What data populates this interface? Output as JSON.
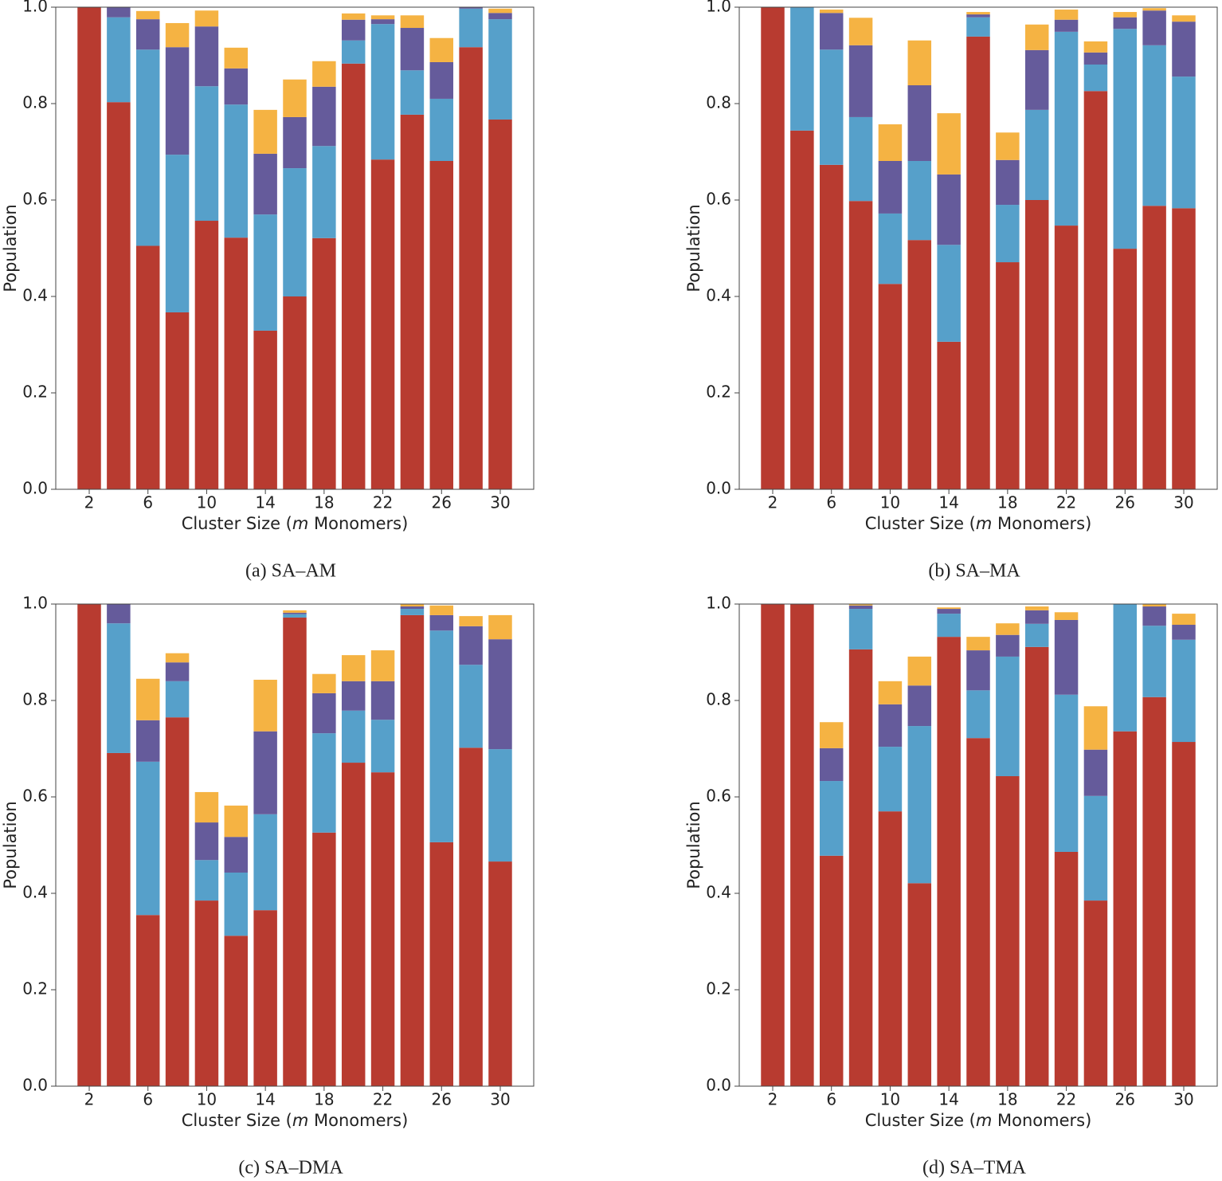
{
  "chart_data": [
    {
      "type": "stacked_bar",
      "caption": "(a) SA–AM",
      "ylabel": "Population",
      "xlabel": [
        "Cluster Size (",
        "m",
        " Monomers)"
      ],
      "x": [
        2,
        4,
        6,
        8,
        10,
        12,
        14,
        16,
        18,
        20,
        22,
        24,
        26,
        28,
        30
      ],
      "xlim": [
        -0.28,
        32.28
      ],
      "xticks": [
        2,
        6,
        10,
        14,
        18,
        22,
        26,
        30
      ],
      "ylim": [
        0,
        1
      ],
      "yticks": [
        {
          "value": 0,
          "label": "0.0"
        },
        0.2,
        0.4,
        0.6,
        0.8,
        {
          "value": 1,
          "label": "1.0"
        }
      ],
      "series": [
        {
          "color": "#b83b30",
          "values": [
            1.0,
            0.803,
            0.505,
            0.367,
            0.557,
            0.522,
            0.329,
            0.4,
            0.521,
            0.883,
            0.684,
            0.777,
            0.681,
            0.917,
            0.767
          ]
        },
        {
          "color": "#56a0ca",
          "values": [
            0,
            0.176,
            0.407,
            0.327,
            0.279,
            0.276,
            0.241,
            0.266,
            0.191,
            0.048,
            0.281,
            0.092,
            0.129,
            0.08,
            0.208
          ]
        },
        {
          "color": "#655b9b",
          "values": [
            0,
            0.021,
            0.063,
            0.223,
            0.124,
            0.075,
            0.126,
            0.106,
            0.123,
            0.043,
            0.01,
            0.088,
            0.076,
            0.003,
            0.013
          ]
        },
        {
          "color": "#f5b343",
          "values": [
            0,
            0,
            0.017,
            0.05,
            0.033,
            0.043,
            0.091,
            0.078,
            0.053,
            0.013,
            0.008,
            0.026,
            0.05,
            0,
            0.009
          ]
        }
      ]
    },
    {
      "type": "stacked_bar",
      "caption": "(b) SA–MA",
      "ylabel": "Population",
      "xlabel": [
        "Cluster Size (",
        "m",
        " Monomers)"
      ],
      "x": [
        2,
        4,
        6,
        8,
        10,
        12,
        14,
        16,
        18,
        20,
        22,
        24,
        26,
        28,
        30
      ],
      "xlim": [
        -0.28,
        32.28
      ],
      "xticks": [
        2,
        6,
        10,
        14,
        18,
        22,
        26,
        30
      ],
      "ylim": [
        0,
        1
      ],
      "yticks": [
        {
          "value": 0,
          "label": "0.0"
        },
        0.2,
        0.4,
        0.6,
        0.8,
        {
          "value": 1,
          "label": "1.0"
        }
      ],
      "series": [
        {
          "color": "#b83b30",
          "values": [
            1.0,
            0.744,
            0.673,
            0.598,
            0.426,
            0.517,
            0.306,
            0.939,
            0.471,
            0.6,
            0.547,
            0.826,
            0.499,
            0.588,
            0.583
          ]
        },
        {
          "color": "#56a0ca",
          "values": [
            0,
            0.256,
            0.239,
            0.174,
            0.146,
            0.164,
            0.201,
            0.04,
            0.119,
            0.187,
            0.402,
            0.055,
            0.456,
            0.333,
            0.273
          ]
        },
        {
          "color": "#655b9b",
          "values": [
            0,
            0,
            0.076,
            0.149,
            0.109,
            0.157,
            0.146,
            0.006,
            0.093,
            0.124,
            0.025,
            0.025,
            0.024,
            0.072,
            0.114
          ]
        },
        {
          "color": "#f5b343",
          "values": [
            0,
            0,
            0.007,
            0.057,
            0.076,
            0.093,
            0.127,
            0.005,
            0.057,
            0.053,
            0.021,
            0.023,
            0.011,
            0.005,
            0.013
          ]
        }
      ]
    },
    {
      "type": "stacked_bar",
      "caption": "(c) SA–DMA",
      "ylabel": "Population",
      "xlabel": [
        "Cluster Size (",
        "m",
        " Monomers)"
      ],
      "x": [
        2,
        4,
        6,
        8,
        10,
        12,
        14,
        16,
        18,
        20,
        22,
        24,
        26,
        28,
        30
      ],
      "xlim": [
        -0.28,
        32.28
      ],
      "xticks": [
        2,
        6,
        10,
        14,
        18,
        22,
        26,
        30
      ],
      "ylim": [
        0,
        1
      ],
      "yticks": [
        {
          "value": 0,
          "label": "0.0"
        },
        0.2,
        0.4,
        0.6,
        0.8,
        {
          "value": 1,
          "label": "1.0"
        }
      ],
      "series": [
        {
          "color": "#b83b30",
          "values": [
            1.0,
            0.691,
            0.355,
            0.765,
            0.385,
            0.312,
            0.365,
            0.972,
            0.526,
            0.671,
            0.651,
            0.977,
            0.506,
            0.702,
            0.466
          ]
        },
        {
          "color": "#56a0ca",
          "values": [
            0,
            0.269,
            0.318,
            0.075,
            0.084,
            0.131,
            0.199,
            0.007,
            0.206,
            0.108,
            0.109,
            0.013,
            0.439,
            0.172,
            0.233
          ]
        },
        {
          "color": "#655b9b",
          "values": [
            0,
            0.04,
            0.086,
            0.039,
            0.078,
            0.074,
            0.172,
            0.003,
            0.083,
            0.061,
            0.08,
            0.005,
            0.032,
            0.08,
            0.228
          ]
        },
        {
          "color": "#f5b343",
          "values": [
            0,
            0,
            0.086,
            0.019,
            0.063,
            0.065,
            0.107,
            0.005,
            0.04,
            0.054,
            0.064,
            0.005,
            0.02,
            0.021,
            0.05
          ]
        }
      ]
    },
    {
      "type": "stacked_bar",
      "caption": "(d) SA–TMA",
      "ylabel": "Population",
      "xlabel": [
        "Cluster Size (",
        "m",
        " Monomers)"
      ],
      "x": [
        2,
        4,
        6,
        8,
        10,
        12,
        14,
        16,
        18,
        20,
        22,
        24,
        26,
        28,
        30
      ],
      "xlim": [
        -0.28,
        32.28
      ],
      "xticks": [
        2,
        6,
        10,
        14,
        18,
        22,
        26,
        30
      ],
      "ylim": [
        0,
        1
      ],
      "yticks": [
        {
          "value": 0,
          "label": "0.0"
        },
        0.2,
        0.4,
        0.6,
        0.8,
        {
          "value": 1,
          "label": "1.0"
        }
      ],
      "series": [
        {
          "color": "#b83b30",
          "values": [
            1.0,
            1.0,
            0.478,
            0.906,
            0.57,
            0.421,
            0.932,
            0.722,
            0.643,
            0.911,
            0.486,
            0.385,
            0.736,
            0.807,
            0.714
          ]
        },
        {
          "color": "#56a0ca",
          "values": [
            0,
            0,
            0.155,
            0.084,
            0.134,
            0.326,
            0.048,
            0.099,
            0.248,
            0.048,
            0.326,
            0.217,
            0.264,
            0.148,
            0.212
          ]
        },
        {
          "color": "#655b9b",
          "values": [
            0,
            0,
            0.068,
            0.007,
            0.088,
            0.084,
            0.01,
            0.083,
            0.045,
            0.028,
            0.155,
            0.096,
            0,
            0.04,
            0.031
          ]
        },
        {
          "color": "#f5b343",
          "values": [
            0,
            0,
            0.054,
            0.003,
            0.048,
            0.06,
            0.003,
            0.028,
            0.024,
            0.008,
            0.016,
            0.09,
            0,
            0.005,
            0.023
          ]
        }
      ]
    }
  ]
}
